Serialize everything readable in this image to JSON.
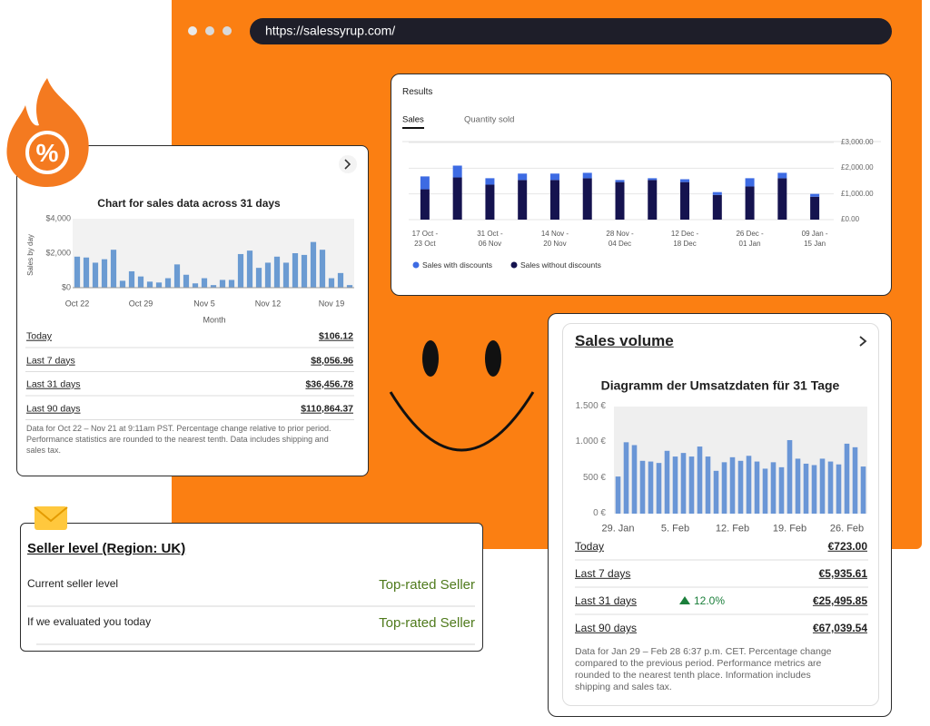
{
  "browser": {
    "url": "https://salessyrup.com/"
  },
  "badge_symbol": "%",
  "chart_data": [
    {
      "type": "bar",
      "title": "Chart for sales data across 31 days",
      "y_label": "Sales by day",
      "x_label": "Month",
      "categories": [
        "Oct 22",
        null,
        null,
        null,
        null,
        null,
        null,
        "Oct 29",
        null,
        null,
        null,
        null,
        null,
        null,
        "Nov 5",
        null,
        null,
        null,
        null,
        null,
        null,
        "Nov 12",
        null,
        null,
        null,
        null,
        null,
        null,
        "Nov 19",
        null,
        null
      ],
      "values": [
        1800,
        1750,
        1450,
        1650,
        2200,
        400,
        950,
        650,
        350,
        300,
        550,
        1350,
        750,
        250,
        550,
        150,
        450,
        450,
        1950,
        2150,
        1150,
        1450,
        1800,
        1450,
        2000,
        1900,
        2650,
        2200,
        550,
        850,
        150
      ],
      "color": "#6b9bd2",
      "plot_background": "#f2f2f2",
      "ylim": [
        0,
        4000
      ],
      "yticks": [
        {
          "value": 0,
          "label": "$0"
        },
        {
          "value": 2000,
          "label": "$2,000"
        },
        {
          "value": 4000,
          "label": "$4,000"
        }
      ],
      "grid": false
    },
    {
      "type": "bar",
      "title": "Results",
      "stacked": true,
      "y_axis_position": "right",
      "categories": [
        "17 Oct -\n23 Oct",
        null,
        "31 Oct -\n06 Nov",
        null,
        "14 Nov -\n20 Nov",
        null,
        "28 Nov -\n04 Dec",
        null,
        "12 Dec -\n18 Dec",
        null,
        "26 Dec -\n01 Jan",
        null,
        "09 Jan -\n15 Jan"
      ],
      "series": [
        {
          "name": "Sales without discounts",
          "color": "#15134f",
          "values": [
            1180,
            1640,
            1360,
            1540,
            1540,
            1610,
            1460,
            1540,
            1460,
            960,
            1290,
            1610,
            890
          ]
        },
        {
          "name": "Sales with discounts",
          "color": "#3d6be3",
          "values": [
            500,
            460,
            250,
            250,
            250,
            210,
            80,
            70,
            110,
            110,
            320,
            210,
            110
          ]
        }
      ],
      "ylim": [
        0,
        3000
      ],
      "yticks": [
        {
          "value": 0,
          "label": "£0.00"
        },
        {
          "value": 1000,
          "label": "£1,000.00"
        },
        {
          "value": 2000,
          "label": "£2,000.00"
        },
        {
          "value": 3000,
          "label": "£3,000.00"
        }
      ],
      "grid": true
    },
    {
      "type": "bar",
      "title": "Diagramm der Umsatzdaten für 31 Tage",
      "categories": [
        "29. Jan",
        null,
        null,
        null,
        null,
        null,
        null,
        "5. Feb",
        null,
        null,
        null,
        null,
        null,
        null,
        "12. Feb",
        null,
        null,
        null,
        null,
        null,
        null,
        "19. Feb",
        null,
        null,
        null,
        null,
        null,
        null,
        "26. Feb",
        null,
        null
      ],
      "values": [
        520,
        1000,
        960,
        740,
        730,
        710,
        880,
        800,
        850,
        800,
        940,
        800,
        600,
        720,
        790,
        740,
        810,
        730,
        630,
        720,
        650,
        1030,
        770,
        700,
        680,
        770,
        730,
        690,
        980,
        930,
        660
      ],
      "color": "#6a96d6",
      "plot_background": "#efefef",
      "ylim": [
        0,
        1500
      ],
      "yticks": [
        {
          "value": 0,
          "label": "0 €"
        },
        {
          "value": 500,
          "label": "500 €"
        },
        {
          "value": 1000,
          "label": "1.000 €"
        },
        {
          "value": 1500,
          "label": "1.500 €"
        }
      ],
      "grid": false
    }
  ],
  "daily_card": {
    "rows": [
      {
        "label": "Today",
        "value": "$106.12"
      },
      {
        "label": "Last 7 days",
        "value": "$8,056.96"
      },
      {
        "label": "Last 31 days",
        "value": "$36,456.78"
      },
      {
        "label": "Last 90 days",
        "value": "$110,864.37"
      }
    ],
    "note": "Data for Oct 22 – Nov 21 at 9:11am PST. Percentage change relative to prior period. Performance statistics are rounded to the nearest tenth. Data includes shipping and sales tax."
  },
  "results_card": {
    "tabs": [
      "Sales",
      "Quantity sold"
    ]
  },
  "seller_card": {
    "title": "Seller level (Region: UK)",
    "rows": [
      {
        "label": "Current seller level",
        "value": "Top-rated Seller"
      },
      {
        "label": "If we evaluated you today",
        "value": "Top-rated Seller"
      }
    ]
  },
  "volume_card": {
    "title": "Sales volume",
    "rows": [
      {
        "label": "Today",
        "value": "€723.00"
      },
      {
        "label": "Last 7 days",
        "value": "€5,935.61"
      },
      {
        "label": "Last 31 days",
        "change": "12.0%",
        "value": "€25,495.85"
      },
      {
        "label": "Last 90 days",
        "value": "€67,039.54"
      }
    ],
    "note": "Data for Jan 29 – Feb 28 6:37 p.m. CET. Percentage change compared to the previous period. Performance metrics are rounded to the nearest tenth place. Information includes shipping and sales tax."
  }
}
